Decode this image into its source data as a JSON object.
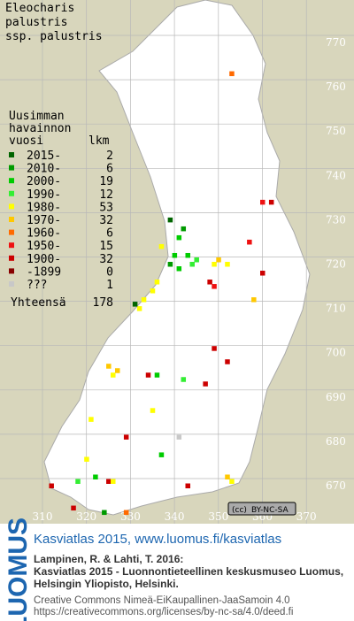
{
  "title": [
    "Eleocharis",
    "palustris",
    "ssp. palustris"
  ],
  "legend": {
    "header": [
      "Uusimman",
      "havainnon",
      "vuosi"
    ],
    "count_header": "lkm",
    "rows": [
      {
        "label": "2015-",
        "count": 2,
        "color": "#006400"
      },
      {
        "label": "2010-",
        "count": 6,
        "color": "#009a00"
      },
      {
        "label": "2000-",
        "count": 19,
        "color": "#00cc00"
      },
      {
        "label": "1990-",
        "count": 12,
        "color": "#33ee33"
      },
      {
        "label": "1980-",
        "count": 53,
        "color": "#ffff00"
      },
      {
        "label": "1970-",
        "count": 32,
        "color": "#ffc800"
      },
      {
        "label": "1960-",
        "count": 6,
        "color": "#ff6a00"
      },
      {
        "label": "1950-",
        "count": 15,
        "color": "#ee1111"
      },
      {
        "label": "1900-",
        "count": 32,
        "color": "#cc0000"
      },
      {
        "label": "-1899",
        "count": 0,
        "color": "#880000"
      },
      {
        "label": "???",
        "count": 1,
        "color": "#c8c8c8"
      }
    ],
    "total_label": "Yhteensä",
    "total": 178
  },
  "map": {
    "xlim": [
      300,
      380
    ],
    "ylim": [
      660,
      780
    ],
    "xticks": [
      310,
      320,
      330,
      340,
      350,
      360,
      370
    ],
    "yticks": [
      670,
      680,
      690,
      700,
      710,
      720,
      730,
      740,
      750,
      760,
      770
    ],
    "squares": [
      {
        "x": 353,
        "y": 763,
        "class": 6
      },
      {
        "x": 339,
        "y": 730,
        "class": 0
      },
      {
        "x": 341,
        "y": 726,
        "class": 2
      },
      {
        "x": 342,
        "y": 728,
        "class": 1
      },
      {
        "x": 343,
        "y": 722,
        "class": 2
      },
      {
        "x": 344,
        "y": 720,
        "class": 3
      },
      {
        "x": 340,
        "y": 722,
        "class": 2
      },
      {
        "x": 339,
        "y": 720,
        "class": 1
      },
      {
        "x": 341,
        "y": 719,
        "class": 2
      },
      {
        "x": 345,
        "y": 721,
        "class": 3
      },
      {
        "x": 337,
        "y": 724,
        "class": 4
      },
      {
        "x": 336,
        "y": 716,
        "class": 4
      },
      {
        "x": 335,
        "y": 714,
        "class": 4
      },
      {
        "x": 333,
        "y": 712,
        "class": 4
      },
      {
        "x": 332,
        "y": 710,
        "class": 4
      },
      {
        "x": 331,
        "y": 711,
        "class": 0
      },
      {
        "x": 349,
        "y": 720,
        "class": 4
      },
      {
        "x": 352,
        "y": 720,
        "class": 4
      },
      {
        "x": 350,
        "y": 721,
        "class": 5
      },
      {
        "x": 362,
        "y": 734,
        "class": 8
      },
      {
        "x": 360,
        "y": 734,
        "class": 7
      },
      {
        "x": 360,
        "y": 718,
        "class": 8
      },
      {
        "x": 357,
        "y": 725,
        "class": 7
      },
      {
        "x": 348,
        "y": 716,
        "class": 8
      },
      {
        "x": 349,
        "y": 715,
        "class": 7
      },
      {
        "x": 358,
        "y": 712,
        "class": 5
      },
      {
        "x": 325,
        "y": 697,
        "class": 5
      },
      {
        "x": 327,
        "y": 696,
        "class": 5
      },
      {
        "x": 326,
        "y": 695,
        "class": 4
      },
      {
        "x": 352,
        "y": 698,
        "class": 8
      },
      {
        "x": 349,
        "y": 701,
        "class": 8
      },
      {
        "x": 334,
        "y": 695,
        "class": 8
      },
      {
        "x": 336,
        "y": 695,
        "class": 2
      },
      {
        "x": 342,
        "y": 694,
        "class": 3
      },
      {
        "x": 347,
        "y": 693,
        "class": 8
      },
      {
        "x": 335,
        "y": 687,
        "class": 4
      },
      {
        "x": 329,
        "y": 681,
        "class": 8
      },
      {
        "x": 341,
        "y": 681,
        "class": 10
      },
      {
        "x": 337,
        "y": 677,
        "class": 2
      },
      {
        "x": 343,
        "y": 670,
        "class": 8
      },
      {
        "x": 353,
        "y": 671,
        "class": 4
      },
      {
        "x": 352,
        "y": 672,
        "class": 5
      },
      {
        "x": 312,
        "y": 670,
        "class": 8
      },
      {
        "x": 320,
        "y": 676,
        "class": 4
      },
      {
        "x": 325,
        "y": 671,
        "class": 8
      },
      {
        "x": 326,
        "y": 671,
        "class": 4
      },
      {
        "x": 329,
        "y": 664,
        "class": 6
      },
      {
        "x": 324,
        "y": 664,
        "class": 1
      },
      {
        "x": 317,
        "y": 665,
        "class": 8
      },
      {
        "x": 321,
        "y": 685,
        "class": 4
      },
      {
        "x": 322,
        "y": 672,
        "class": 2
      },
      {
        "x": 318,
        "y": 671,
        "class": 3
      }
    ]
  },
  "license_badge": "BY-NC-SA",
  "logo": "LUOMUS",
  "footer": {
    "headline": "Kasviatlas 2015, www.luomus.fi/kasviatlas",
    "citation": [
      "Lampinen, R. & Lahti, T. 2016:",
      "Kasviatlas 2015 - Luonnontieteellinen keskusmuseo Luomus,",
      "Helsingin Yliopisto, Helsinki."
    ],
    "license": [
      "Creative Commons Nimeä-EiKaupallinen-JaaSamoin 4.0",
      "https://creativecommons.org/licenses/by-nc-sa/4.0/deed.fi"
    ]
  }
}
